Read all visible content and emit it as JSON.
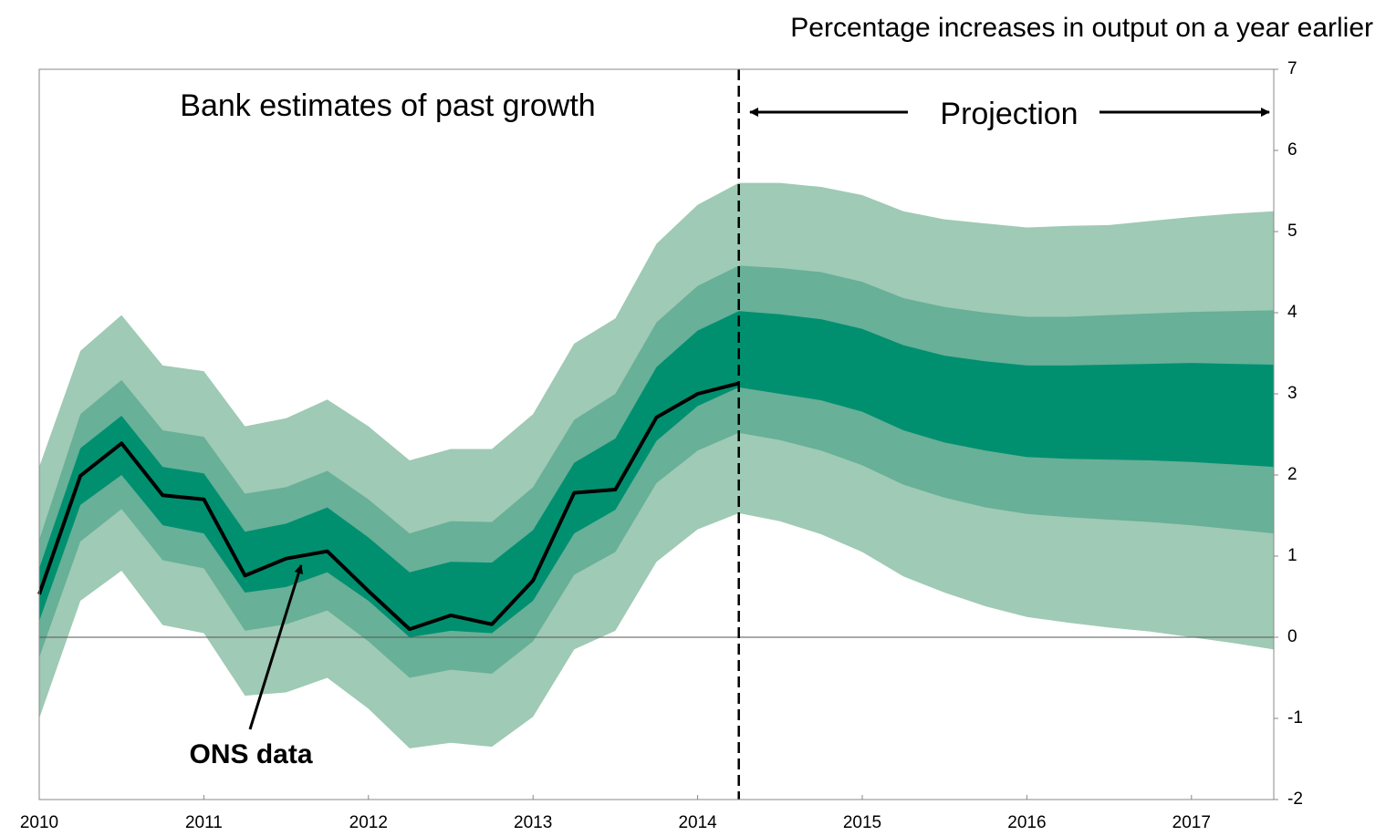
{
  "chart_data": {
    "type": "fan",
    "y_axis_label": "Percentage increases in output on a year earlier",
    "annotations": [
      "Bank estimates of past growth",
      "Projection",
      "ONS data"
    ],
    "projection_start": 2014.25,
    "x": [
      2010,
      2010.25,
      2010.5,
      2010.75,
      2011,
      2011.25,
      2011.5,
      2011.75,
      2012,
      2012.25,
      2012.5,
      2012.75,
      2013,
      2013.25,
      2013.5,
      2013.75,
      2014,
      2014.25,
      2014.5,
      2014.75,
      2015,
      2015.25,
      2015.5,
      2015.75,
      2016,
      2016.25,
      2016.5,
      2016.75,
      2017,
      2017.25,
      2017.5
    ],
    "xlim": [
      2010,
      2017.5
    ],
    "xticks": [
      2010,
      2011,
      2012,
      2013,
      2014,
      2015,
      2016,
      2017
    ],
    "ylim": [
      -2,
      7
    ],
    "yticks": [
      -2,
      -1,
      0,
      1,
      2,
      3,
      4,
      5,
      6,
      7
    ],
    "bands": [
      {
        "color": "#9fcab5",
        "lower": [
          -1.0,
          0.45,
          0.82,
          0.15,
          0.05,
          -0.72,
          -0.68,
          -0.5,
          -0.88,
          -1.37,
          -1.3,
          -1.35,
          -0.98,
          -0.15,
          0.08,
          0.93,
          1.33,
          1.53,
          1.43,
          1.27,
          1.05,
          0.75,
          0.55,
          0.38,
          0.25,
          0.18,
          0.12,
          0.07,
          0.0,
          -0.07,
          -0.15
        ],
        "upper": [
          2.1,
          3.53,
          3.97,
          3.35,
          3.28,
          2.6,
          2.7,
          2.93,
          2.6,
          2.18,
          2.32,
          2.32,
          2.75,
          3.62,
          3.93,
          4.85,
          5.33,
          5.6,
          5.6,
          5.55,
          5.45,
          5.25,
          5.15,
          5.1,
          5.05,
          5.07,
          5.08,
          5.13,
          5.18,
          5.22,
          5.25
        ]
      },
      {
        "color": "#68b098",
        "lower": [
          -0.25,
          1.18,
          1.58,
          0.95,
          0.85,
          0.08,
          0.16,
          0.33,
          -0.05,
          -0.5,
          -0.4,
          -0.45,
          -0.05,
          0.77,
          1.05,
          1.9,
          2.3,
          2.52,
          2.43,
          2.3,
          2.12,
          1.88,
          1.72,
          1.6,
          1.52,
          1.48,
          1.45,
          1.42,
          1.38,
          1.33,
          1.28
        ],
        "upper": [
          1.2,
          2.75,
          3.17,
          2.55,
          2.47,
          1.77,
          1.85,
          2.05,
          1.7,
          1.28,
          1.43,
          1.42,
          1.85,
          2.68,
          3.0,
          3.88,
          4.33,
          4.58,
          4.55,
          4.5,
          4.38,
          4.18,
          4.07,
          4.0,
          3.95,
          3.95,
          3.97,
          3.99,
          4.01,
          4.02,
          4.03
        ]
      },
      {
        "color": "#009070",
        "lower": [
          0.2,
          1.63,
          2.0,
          1.38,
          1.28,
          0.55,
          0.62,
          0.8,
          0.45,
          0.0,
          0.08,
          0.05,
          0.45,
          1.28,
          1.57,
          2.42,
          2.85,
          3.08,
          3.0,
          2.92,
          2.78,
          2.55,
          2.4,
          2.3,
          2.22,
          2.2,
          2.19,
          2.18,
          2.16,
          2.13,
          2.1
        ],
        "upper": [
          0.85,
          2.33,
          2.73,
          2.1,
          2.02,
          1.3,
          1.4,
          1.6,
          1.23,
          0.8,
          0.93,
          0.92,
          1.32,
          2.15,
          2.45,
          3.33,
          3.78,
          4.02,
          3.98,
          3.92,
          3.8,
          3.6,
          3.47,
          3.4,
          3.35,
          3.35,
          3.36,
          3.37,
          3.38,
          3.37,
          3.36
        ]
      }
    ],
    "line": {
      "color": "#000000",
      "values": [
        0.53,
        1.99,
        2.39,
        1.75,
        1.7,
        0.76,
        0.97,
        1.06,
        0.57,
        0.1,
        0.27,
        0.16,
        0.7,
        1.78,
        1.82,
        2.71,
        3.0,
        3.13,
        null,
        null,
        null,
        null,
        null,
        null,
        null,
        null,
        null,
        null,
        null,
        null,
        null
      ]
    }
  }
}
